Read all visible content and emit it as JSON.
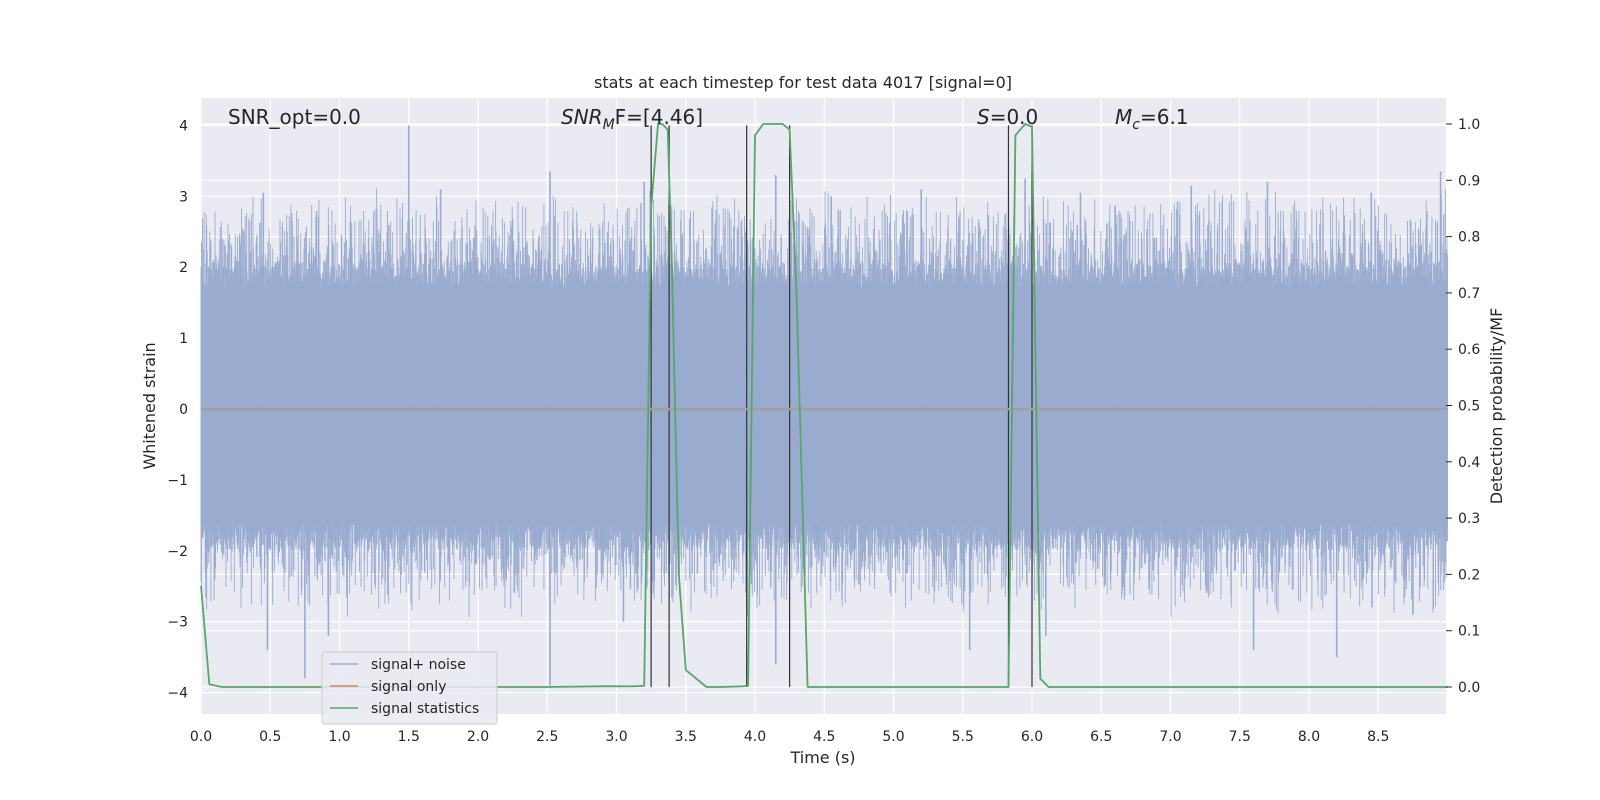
{
  "chart_data": {
    "type": "line",
    "title": "stats at each timestep for test data 4017 [signal=0]",
    "xlabel": "Time (s)",
    "ylabel_left": "Whitened strain",
    "ylabel_right": "Detection probability/MF",
    "xlim": [
      0.0,
      9.0
    ],
    "ylim_left": [
      -4.4,
      4.4
    ],
    "ylim_right": [
      -0.05,
      1.05
    ],
    "x_ticks": [
      "0.0",
      "0.5",
      "1.0",
      "1.5",
      "2.0",
      "2.5",
      "3.0",
      "3.5",
      "4.0",
      "4.5",
      "5.0",
      "5.5",
      "6.0",
      "6.5",
      "7.0",
      "7.5",
      "8.0",
      "8.5"
    ],
    "y_ticks_left": [
      "4",
      "3",
      "2",
      "1",
      "0",
      "−1",
      "−2",
      "−3",
      "−4"
    ],
    "y_ticks_right": [
      "1.0",
      "0.9",
      "0.8",
      "0.7",
      "0.6",
      "0.5",
      "0.4",
      "0.3",
      "0.2",
      "0.1",
      "0.0"
    ],
    "grid": true,
    "legend_placement": "lower-left",
    "annotations": {
      "snr_opt": "SNR_opt=0.0",
      "snr_mf_main": "SNR",
      "snr_mf_sub": "M",
      "snr_mf_tail": "F=[4.46]",
      "s_main": "S",
      "s_tail": "=0.0",
      "mc_main": "M",
      "mc_sub": "c",
      "mc_tail": "=6.1"
    },
    "series": [
      {
        "name": "signal+ noise",
        "color": "#9aabd0",
        "axis": "left",
        "note": "dense whitened noise, envelope approx ±2 with spikes up to about ±4",
        "spikes_up": [
          [
            0.45,
            3.05
          ],
          [
            1.5,
            4.0
          ],
          [
            1.73,
            3.1
          ],
          [
            2.52,
            3.35
          ],
          [
            3.2,
            3.2
          ],
          [
            4.15,
            3.3
          ],
          [
            4.55,
            3.0
          ],
          [
            5.2,
            3.1
          ],
          [
            5.95,
            3.25
          ],
          [
            6.35,
            3.05
          ],
          [
            6.6,
            2.85
          ],
          [
            7.15,
            3.15
          ],
          [
            7.7,
            3.2
          ],
          [
            8.45,
            3.05
          ],
          [
            8.95,
            3.35
          ]
        ],
        "spikes_down": [
          [
            0.48,
            -3.4
          ],
          [
            0.75,
            -3.8
          ],
          [
            0.92,
            -3.2
          ],
          [
            2.52,
            -3.9
          ],
          [
            3.05,
            -3.0
          ],
          [
            4.15,
            -3.6
          ],
          [
            5.55,
            -3.4
          ],
          [
            6.1,
            -3.2
          ],
          [
            7.6,
            -3.4
          ],
          [
            8.2,
            -3.5
          ],
          [
            8.75,
            -2.9
          ]
        ]
      },
      {
        "name": "signal only",
        "color": "#dd8452",
        "axis": "left",
        "x": [
          0.0,
          9.0
        ],
        "y": [
          0.0,
          0.0
        ]
      },
      {
        "name": "signal statistics",
        "color": "#55a868",
        "axis": "right",
        "x": [
          0.0,
          0.06,
          0.15,
          1.0,
          2.0,
          2.5,
          2.95,
          3.1,
          3.2,
          3.25,
          3.3,
          3.33,
          3.37,
          3.4,
          3.45,
          3.5,
          3.55,
          3.65,
          3.75,
          3.9,
          3.95,
          4.0,
          4.06,
          4.2,
          4.25,
          4.3,
          4.38,
          4.5,
          5.0,
          5.5,
          5.83,
          5.88,
          5.95,
          6.0,
          6.06,
          6.12,
          6.5,
          7.0,
          8.0,
          9.0
        ],
        "y": [
          0.18,
          0.005,
          0.0,
          0.0,
          0.0,
          0.0,
          0.0015,
          0.001,
          0.002,
          0.85,
          1.0,
          1.0,
          0.99,
          0.75,
          0.2,
          0.03,
          0.02,
          0.0,
          0.0,
          0.001,
          0.002,
          0.98,
          1.0,
          1.0,
          0.99,
          0.7,
          0.0,
          0.0,
          0.0,
          0.0,
          0.0,
          0.98,
          1.0,
          0.995,
          0.015,
          0.0,
          0.0,
          0.0,
          0.0,
          0.0
        ]
      }
    ],
    "vertical_markers": {
      "color": "#333333",
      "x": [
        3.25,
        3.38,
        3.94,
        4.25,
        5.83,
        6.0
      ]
    }
  }
}
